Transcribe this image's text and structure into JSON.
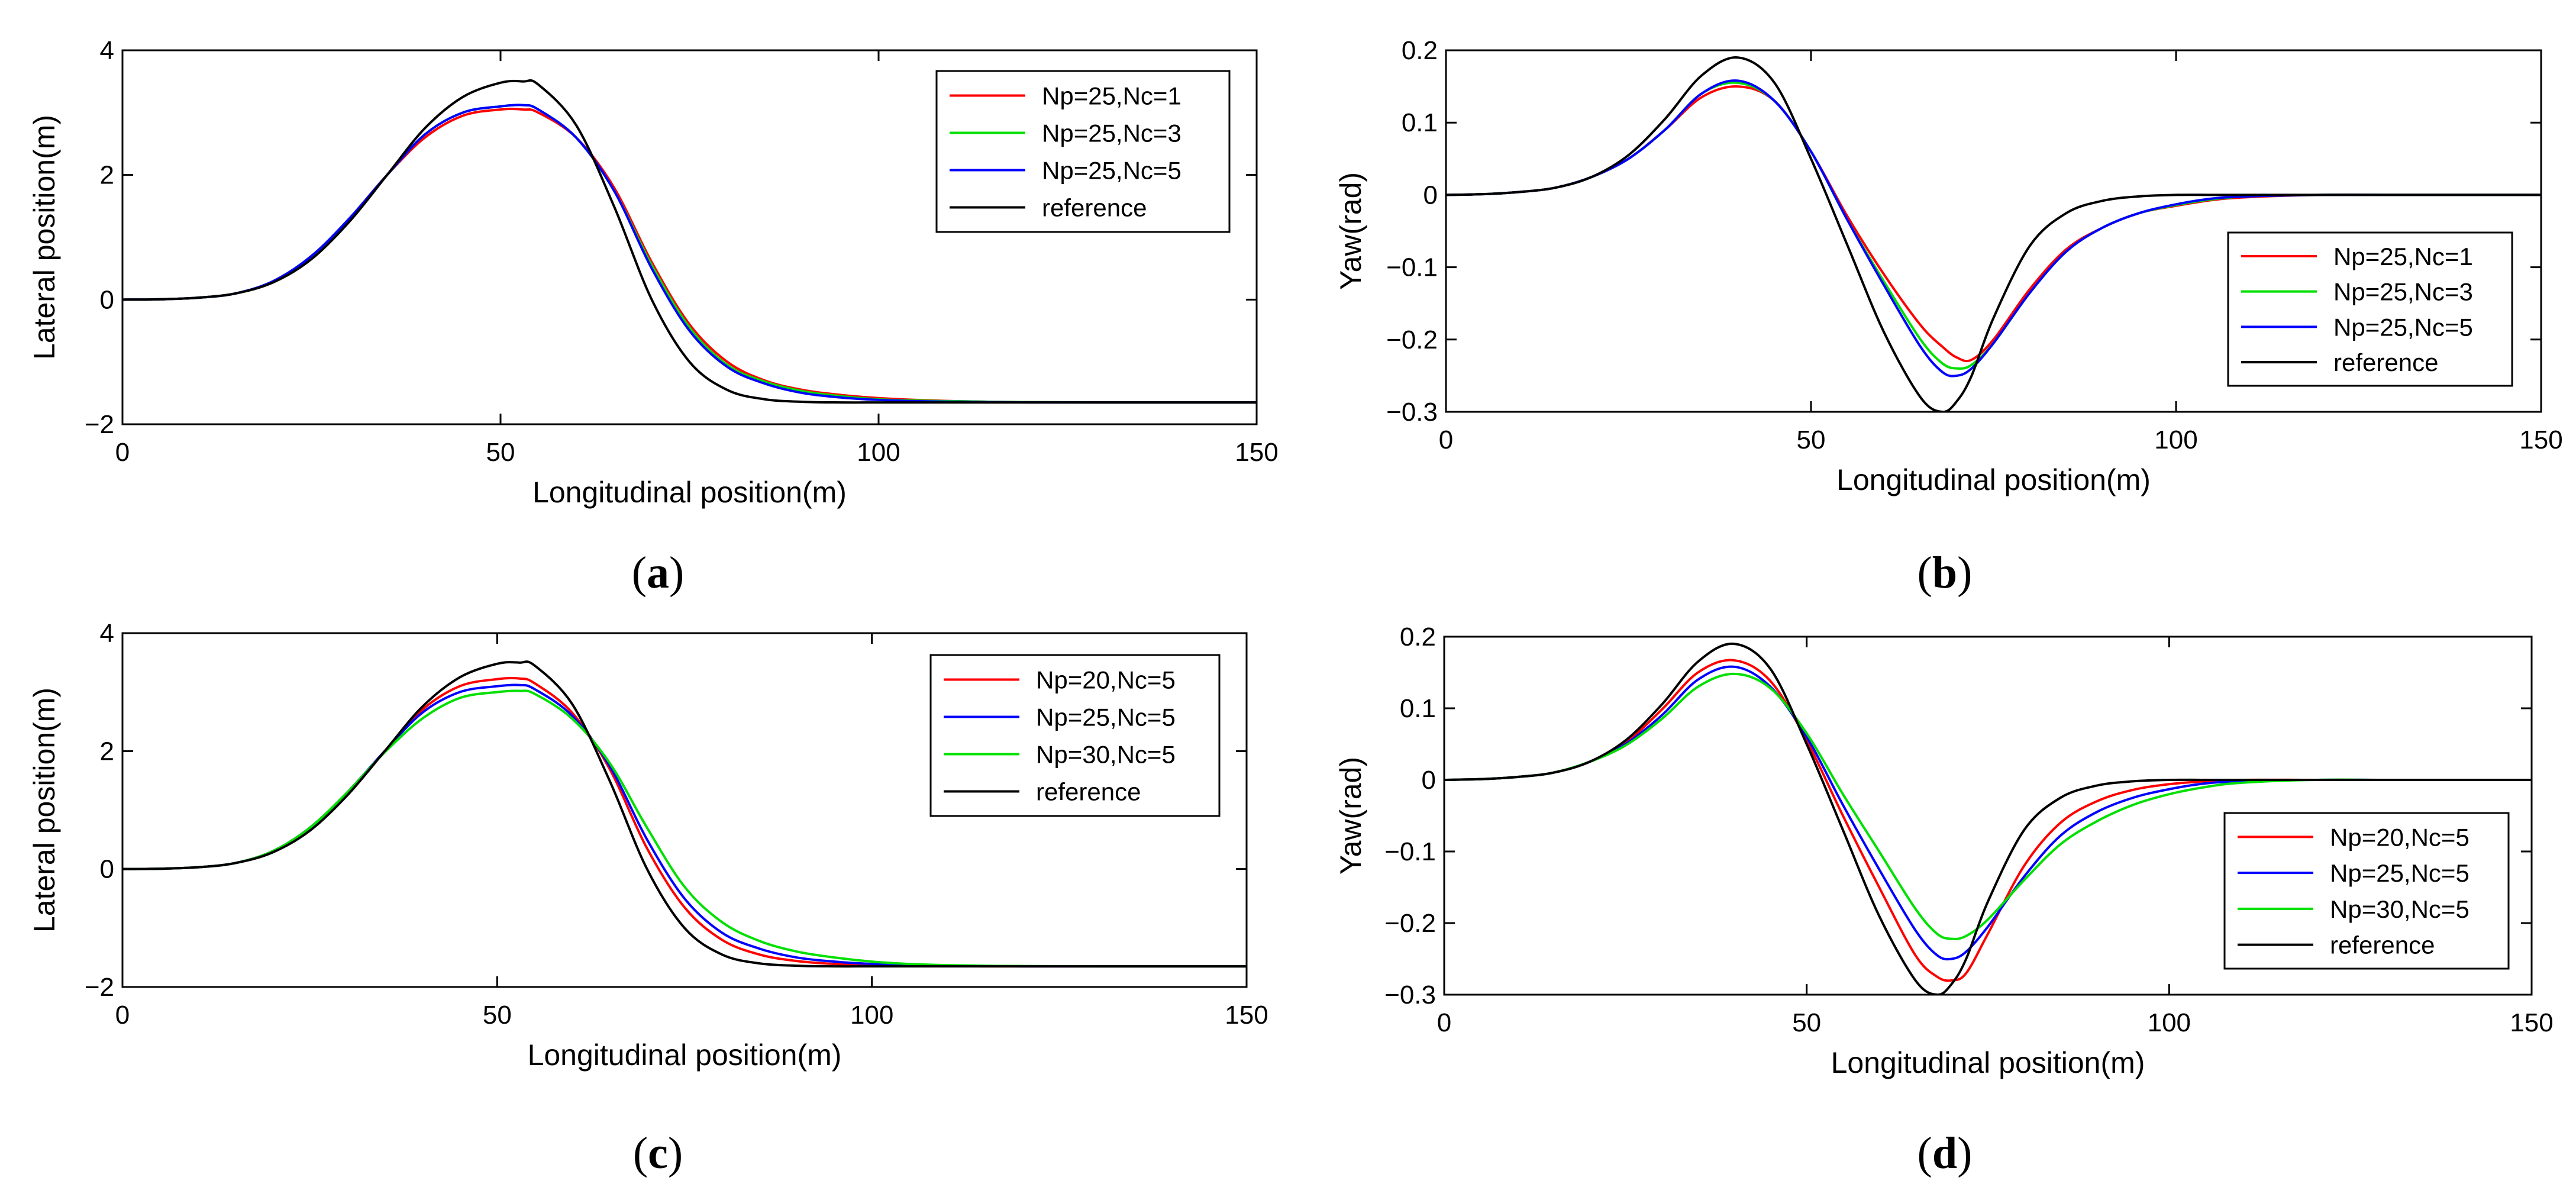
{
  "colors": {
    "red": "#ff0000",
    "green": "#00e000",
    "blue": "#0000ff",
    "black": "#000000"
  },
  "panels": [
    {
      "caption_letter": "a"
    },
    {
      "caption_letter": "b"
    },
    {
      "caption_letter": "c"
    },
    {
      "caption_letter": "d"
    }
  ],
  "chart_data": [
    {
      "type": "line",
      "panel": "a",
      "title": "",
      "xlabel": "Longitudinal position(m)",
      "ylabel": "Lateral position(m)",
      "xlim": [
        0,
        150
      ],
      "ylim": [
        -2,
        4
      ],
      "xticks": [
        0,
        50,
        100,
        150
      ],
      "yticks": [
        -2,
        0,
        2,
        4
      ],
      "ytick_labels": [
        "−2",
        "0",
        "2",
        "4"
      ],
      "grid": false,
      "legend_position": "top-right",
      "x": [
        0,
        5,
        10,
        15,
        20,
        25,
        30,
        35,
        40,
        45,
        50,
        53,
        55,
        60,
        65,
        70,
        75,
        80,
        85,
        90,
        95,
        100,
        105,
        110,
        115,
        120,
        130,
        140,
        150
      ],
      "series": [
        {
          "name": "Np=25,Nc=1",
          "color": "red",
          "values": [
            0,
            0.005,
            0.03,
            0.1,
            0.3,
            0.7,
            1.3,
            2.0,
            2.6,
            2.95,
            3.05,
            3.05,
            3.0,
            2.6,
            1.8,
            0.6,
            -0.4,
            -1.0,
            -1.3,
            -1.45,
            -1.53,
            -1.58,
            -1.61,
            -1.63,
            -1.64,
            -1.645,
            -1.65,
            -1.65,
            -1.65
          ]
        },
        {
          "name": "Np=25,Nc=3",
          "color": "green",
          "values": [
            0,
            0.005,
            0.03,
            0.1,
            0.3,
            0.7,
            1.3,
            2.0,
            2.65,
            3.0,
            3.1,
            3.12,
            3.05,
            2.6,
            1.75,
            0.55,
            -0.45,
            -1.05,
            -1.32,
            -1.47,
            -1.55,
            -1.6,
            -1.62,
            -1.63,
            -1.64,
            -1.645,
            -1.65,
            -1.65,
            -1.65
          ]
        },
        {
          "name": "Np=25,Nc=5",
          "color": "blue",
          "values": [
            0,
            0.005,
            0.03,
            0.1,
            0.3,
            0.7,
            1.3,
            2.0,
            2.65,
            3.0,
            3.1,
            3.12,
            3.05,
            2.6,
            1.75,
            0.5,
            -0.5,
            -1.08,
            -1.35,
            -1.5,
            -1.57,
            -1.61,
            -1.63,
            -1.64,
            -1.645,
            -1.65,
            -1.65,
            -1.65,
            -1.65
          ]
        },
        {
          "name": "reference",
          "color": "black",
          "values": [
            0,
            0.005,
            0.03,
            0.1,
            0.28,
            0.65,
            1.25,
            2.0,
            2.75,
            3.25,
            3.48,
            3.5,
            3.45,
            2.8,
            1.5,
            0.0,
            -1.0,
            -1.45,
            -1.6,
            -1.64,
            -1.65,
            -1.65,
            -1.65,
            -1.65,
            -1.65,
            -1.65,
            -1.65,
            -1.65,
            -1.65
          ]
        }
      ]
    },
    {
      "type": "line",
      "panel": "b",
      "title": "",
      "xlabel": "Longitudinal position(m)",
      "ylabel": "Yaw(rad)",
      "xlim": [
        0,
        150
      ],
      "ylim": [
        -0.3,
        0.2
      ],
      "xticks": [
        0,
        50,
        100,
        150
      ],
      "yticks": [
        -0.3,
        -0.2,
        -0.1,
        0,
        0.1,
        0.2
      ],
      "ytick_labels": [
        "−0.3",
        "−0.2",
        "−0.1",
        "0",
        "0.1",
        "0.2"
      ],
      "grid": false,
      "legend_position": "right",
      "x": [
        0,
        5,
        10,
        15,
        20,
        25,
        30,
        35,
        40,
        45,
        50,
        55,
        60,
        65,
        68,
        70,
        72,
        75,
        80,
        85,
        90,
        95,
        100,
        105,
        110,
        120,
        130,
        140,
        150
      ],
      "series": [
        {
          "name": "Np=25,Nc=1",
          "color": "red",
          "values": [
            0,
            0.001,
            0.004,
            0.01,
            0.025,
            0.05,
            0.09,
            0.135,
            0.15,
            0.13,
            0.06,
            -0.03,
            -0.11,
            -0.18,
            -0.21,
            -0.225,
            -0.228,
            -0.2,
            -0.13,
            -0.075,
            -0.045,
            -0.025,
            -0.015,
            -0.007,
            -0.003,
            0,
            0,
            0,
            0
          ]
        },
        {
          "name": "Np=25,Nc=3",
          "color": "green",
          "values": [
            0,
            0.001,
            0.004,
            0.01,
            0.025,
            0.05,
            0.09,
            0.14,
            0.155,
            0.13,
            0.06,
            -0.035,
            -0.12,
            -0.2,
            -0.233,
            -0.24,
            -0.235,
            -0.205,
            -0.135,
            -0.078,
            -0.045,
            -0.025,
            -0.014,
            -0.006,
            -0.002,
            0,
            0,
            0,
            0
          ]
        },
        {
          "name": "Np=25,Nc=5",
          "color": "blue",
          "values": [
            0,
            0.001,
            0.004,
            0.01,
            0.025,
            0.05,
            0.09,
            0.14,
            0.158,
            0.13,
            0.06,
            -0.035,
            -0.125,
            -0.21,
            -0.245,
            -0.25,
            -0.24,
            -0.205,
            -0.135,
            -0.078,
            -0.045,
            -0.025,
            -0.013,
            -0.005,
            -0.002,
            0,
            0,
            0,
            0
          ]
        },
        {
          "name": "reference",
          "color": "black",
          "values": [
            0,
            0.001,
            0.004,
            0.01,
            0.025,
            0.055,
            0.105,
            0.165,
            0.19,
            0.155,
            0.05,
            -0.07,
            -0.19,
            -0.28,
            -0.3,
            -0.285,
            -0.25,
            -0.17,
            -0.07,
            -0.025,
            -0.008,
            -0.002,
            0,
            0,
            0,
            0,
            0,
            0,
            0
          ]
        }
      ]
    },
    {
      "type": "line",
      "panel": "c",
      "title": "",
      "xlabel": "Longitudinal position(m)",
      "ylabel": "Lateral position(m)",
      "xlim": [
        0,
        150
      ],
      "ylim": [
        -2,
        4
      ],
      "xticks": [
        0,
        50,
        100,
        150
      ],
      "yticks": [
        -2,
        0,
        2,
        4
      ],
      "ytick_labels": [
        "−2",
        "0",
        "2",
        "4"
      ],
      "grid": false,
      "legend_position": "top-right",
      "x": [
        0,
        5,
        10,
        15,
        20,
        25,
        30,
        35,
        40,
        45,
        50,
        53,
        55,
        60,
        65,
        70,
        75,
        80,
        85,
        90,
        95,
        100,
        105,
        110,
        115,
        120,
        130,
        140,
        150
      ],
      "series": [
        {
          "name": "Np=20,Nc=5",
          "color": "red",
          "values": [
            0,
            0.005,
            0.03,
            0.1,
            0.3,
            0.7,
            1.3,
            2.0,
            2.7,
            3.1,
            3.22,
            3.23,
            3.15,
            2.65,
            1.7,
            0.35,
            -0.65,
            -1.2,
            -1.45,
            -1.56,
            -1.61,
            -1.63,
            -1.64,
            -1.645,
            -1.65,
            -1.65,
            -1.65,
            -1.65,
            -1.65
          ]
        },
        {
          "name": "Np=25,Nc=5",
          "color": "blue",
          "values": [
            0,
            0.005,
            0.03,
            0.1,
            0.3,
            0.7,
            1.3,
            2.0,
            2.65,
            3.0,
            3.1,
            3.12,
            3.05,
            2.6,
            1.75,
            0.5,
            -0.5,
            -1.08,
            -1.35,
            -1.5,
            -1.57,
            -1.61,
            -1.63,
            -1.64,
            -1.645,
            -1.65,
            -1.65,
            -1.65,
            -1.65
          ]
        },
        {
          "name": "Np=30,Nc=5",
          "color": "green",
          "values": [
            0,
            0.005,
            0.03,
            0.1,
            0.3,
            0.7,
            1.3,
            1.98,
            2.55,
            2.9,
            3.0,
            3.02,
            2.97,
            2.55,
            1.8,
            0.7,
            -0.3,
            -0.9,
            -1.22,
            -1.4,
            -1.5,
            -1.57,
            -1.61,
            -1.63,
            -1.64,
            -1.645,
            -1.65,
            -1.65,
            -1.65
          ]
        },
        {
          "name": "reference",
          "color": "black",
          "values": [
            0,
            0.005,
            0.03,
            0.1,
            0.28,
            0.65,
            1.25,
            2.0,
            2.75,
            3.25,
            3.48,
            3.5,
            3.45,
            2.8,
            1.5,
            0.0,
            -1.0,
            -1.45,
            -1.6,
            -1.64,
            -1.65,
            -1.65,
            -1.65,
            -1.65,
            -1.65,
            -1.65,
            -1.65,
            -1.65,
            -1.65
          ]
        }
      ]
    },
    {
      "type": "line",
      "panel": "d",
      "title": "",
      "xlabel": "Longitudinal position(m)",
      "ylabel": "Yaw(rad)",
      "xlim": [
        0,
        150
      ],
      "ylim": [
        -0.3,
        0.2
      ],
      "xticks": [
        0,
        50,
        100,
        150
      ],
      "yticks": [
        -0.3,
        -0.2,
        -0.1,
        0,
        0.1,
        0.2
      ],
      "ytick_labels": [
        "−0.3",
        "−0.2",
        "−0.1",
        "0",
        "0.1",
        "0.2"
      ],
      "grid": false,
      "legend_position": "bottom-right",
      "x": [
        0,
        5,
        10,
        15,
        20,
        25,
        30,
        35,
        40,
        45,
        50,
        55,
        60,
        65,
        68,
        70,
        72,
        75,
        80,
        85,
        90,
        95,
        100,
        105,
        110,
        120,
        130,
        140,
        150
      ],
      "series": [
        {
          "name": "Np=20,Nc=5",
          "color": "red",
          "values": [
            0,
            0.001,
            0.004,
            0.01,
            0.025,
            0.052,
            0.098,
            0.15,
            0.167,
            0.138,
            0.055,
            -0.05,
            -0.15,
            -0.245,
            -0.275,
            -0.28,
            -0.27,
            -0.215,
            -0.12,
            -0.06,
            -0.03,
            -0.014,
            -0.006,
            -0.002,
            0,
            0,
            0,
            0,
            0
          ]
        },
        {
          "name": "Np=25,Nc=5",
          "color": "blue",
          "values": [
            0,
            0.001,
            0.004,
            0.01,
            0.025,
            0.05,
            0.09,
            0.14,
            0.158,
            0.13,
            0.06,
            -0.035,
            -0.125,
            -0.21,
            -0.245,
            -0.25,
            -0.24,
            -0.205,
            -0.135,
            -0.078,
            -0.045,
            -0.025,
            -0.013,
            -0.005,
            -0.002,
            0,
            0,
            0,
            0
          ]
        },
        {
          "name": "Np=30,Nc=5",
          "color": "green",
          "values": [
            0,
            0.001,
            0.004,
            0.01,
            0.025,
            0.048,
            0.085,
            0.13,
            0.148,
            0.128,
            0.065,
            -0.02,
            -0.1,
            -0.18,
            -0.215,
            -0.222,
            -0.218,
            -0.195,
            -0.14,
            -0.09,
            -0.058,
            -0.035,
            -0.02,
            -0.01,
            -0.004,
            0,
            0,
            0,
            0
          ]
        },
        {
          "name": "reference",
          "color": "black",
          "values": [
            0,
            0.001,
            0.004,
            0.01,
            0.025,
            0.055,
            0.105,
            0.165,
            0.19,
            0.155,
            0.05,
            -0.07,
            -0.19,
            -0.28,
            -0.3,
            -0.285,
            -0.25,
            -0.17,
            -0.07,
            -0.025,
            -0.008,
            -0.002,
            0,
            0,
            0,
            0,
            0,
            0,
            0
          ]
        }
      ]
    }
  ]
}
